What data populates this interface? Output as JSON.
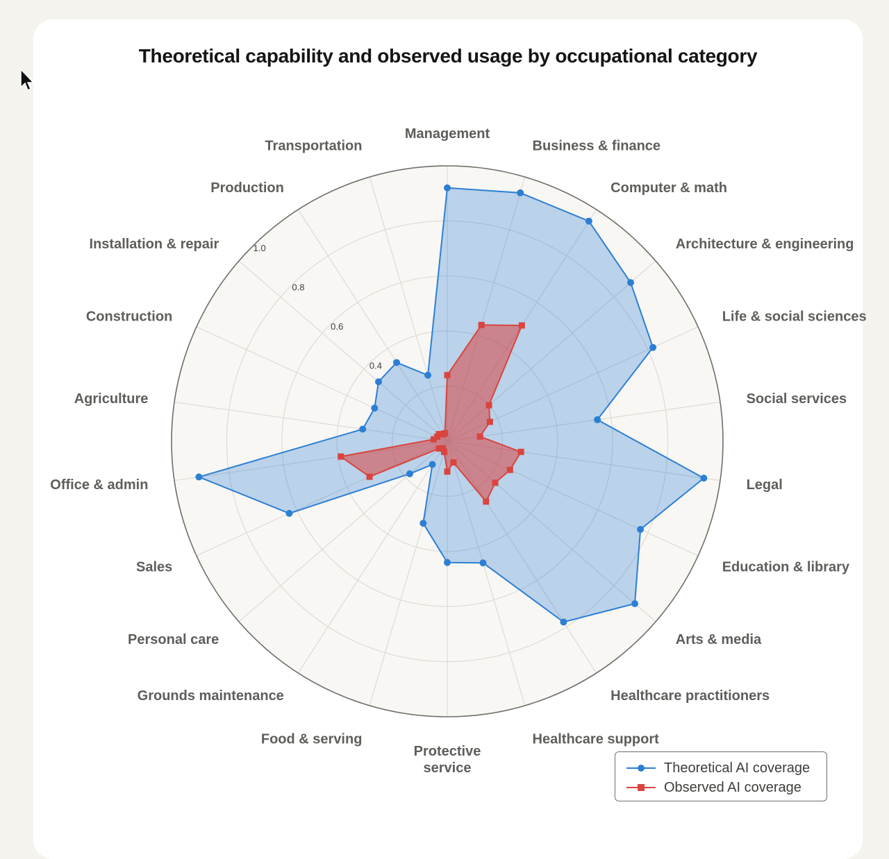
{
  "chart_data": {
    "type": "radar",
    "title": "Theoretical capability and observed usage by occupational category",
    "categories": [
      "Management",
      "Business & finance",
      "Computer & math",
      "Architecture & engineering",
      "Life & social sciences",
      "Social services",
      "Legal",
      "Education & library",
      "Arts & media",
      "Healthcare practitioners",
      "Healthcare support",
      "Protective service",
      "Food & serving",
      "Grounds maintenance",
      "Personal care",
      "Sales",
      "Office & admin",
      "Agriculture",
      "Construction",
      "Installation & repair",
      "Production",
      "Transportation"
    ],
    "series": [
      {
        "name": "Theoretical AI coverage",
        "color": "#2c7fd3",
        "marker": "circle",
        "values": [
          0.92,
          0.94,
          0.95,
          0.88,
          0.82,
          0.55,
          0.94,
          0.77,
          0.9,
          0.78,
          0.46,
          0.44,
          0.31,
          0.1,
          0.18,
          0.63,
          0.91,
          0.31,
          0.29,
          0.33,
          0.34,
          0.25
        ]
      },
      {
        "name": "Observed AI coverage",
        "color": "#d9443f",
        "marker": "square",
        "values": [
          0.24,
          0.44,
          0.5,
          0.2,
          0.17,
          0.12,
          0.27,
          0.25,
          0.23,
          0.26,
          0.08,
          0.11,
          0.04,
          0.03,
          0.04,
          0.31,
          0.39,
          0.05,
          0.04,
          0.04,
          0.03,
          0.03
        ]
      }
    ],
    "radial_range": [
      0,
      1.0
    ],
    "radial_ticks": [
      "0.4",
      "0.6",
      "0.8",
      "1.0"
    ],
    "radial_tick_values": [
      0.4,
      0.6,
      0.8,
      1.0
    ],
    "grid": true,
    "legend_placement": "bottom-right"
  }
}
